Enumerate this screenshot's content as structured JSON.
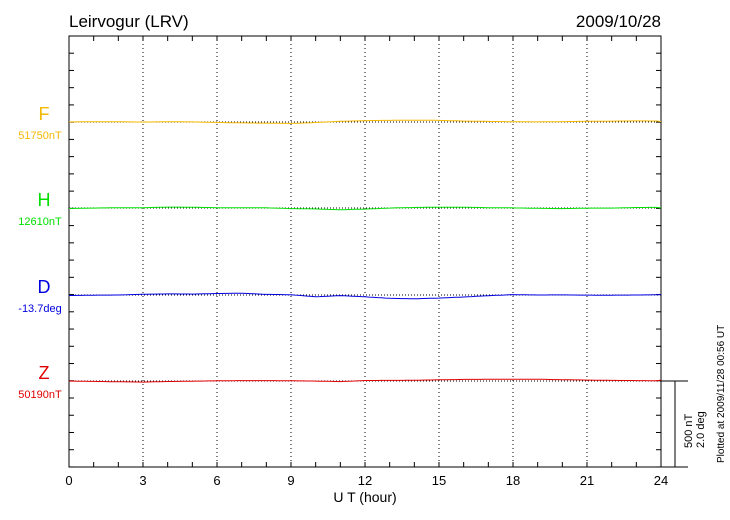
{
  "chart_data": {
    "type": "line",
    "title": "Leirvogur (LRV)",
    "date": "2009/10/28",
    "xlabel": "U T (hour)",
    "xlim": [
      0,
      24
    ],
    "xticks": [
      "0",
      "3",
      "6",
      "9",
      "12",
      "15",
      "18",
      "21",
      "24"
    ],
    "grid": "vertical dotted every 3 hours, dotted baseline per series",
    "scale_bar": {
      "nT": "500 nT",
      "deg": "2.0 deg"
    },
    "plotted_note": "Plotted at 2009/11/28 00:56 UT",
    "x_hours": [
      0,
      1,
      2,
      3,
      4,
      5,
      6,
      7,
      8,
      9,
      10,
      11,
      12,
      13,
      14,
      15,
      16,
      17,
      18,
      19,
      20,
      21,
      22,
      23,
      24
    ],
    "series": [
      {
        "name": "F",
        "baseline_label": "51750nT",
        "unit": "nT",
        "color": "#f5b800",
        "values": [
          0,
          0,
          -2,
          -4,
          -1,
          0,
          -1,
          -2,
          -3,
          -6,
          -2,
          3,
          5,
          6,
          7,
          8,
          6,
          6,
          5,
          4,
          4,
          4,
          3,
          3,
          2
        ]
      },
      {
        "name": "H",
        "baseline_label": "12610nT",
        "unit": "nT",
        "color": "#00e000",
        "values": [
          0,
          1,
          1,
          -1,
          2,
          1,
          0,
          2,
          3,
          0,
          -2,
          -8,
          -6,
          -2,
          0,
          1,
          2,
          1,
          2,
          1,
          0,
          2,
          1,
          2,
          1
        ]
      },
      {
        "name": "D",
        "baseline_label": "-13.7deg",
        "unit": "deg",
        "color": "#0000e0",
        "values": [
          0,
          0.01,
          0.01,
          0.02,
          0.02,
          0.01,
          0.02,
          0.03,
          0.01,
          0.01,
          -0.03,
          0,
          -0.03,
          -0.07,
          -0.09,
          -0.08,
          -0.06,
          -0.03,
          0,
          0,
          0.01,
          0.01,
          0.01,
          0.01,
          0.01
        ]
      },
      {
        "name": "Z",
        "baseline_label": "50190nT",
        "unit": "nT",
        "color": "#e00000",
        "values": [
          0,
          0,
          -1,
          -3,
          -1,
          -1,
          -1,
          -1,
          -1,
          -1,
          -1,
          -2,
          6,
          7,
          7,
          8,
          8,
          7,
          7,
          7,
          6,
          6,
          6,
          6,
          5
        ]
      }
    ]
  }
}
